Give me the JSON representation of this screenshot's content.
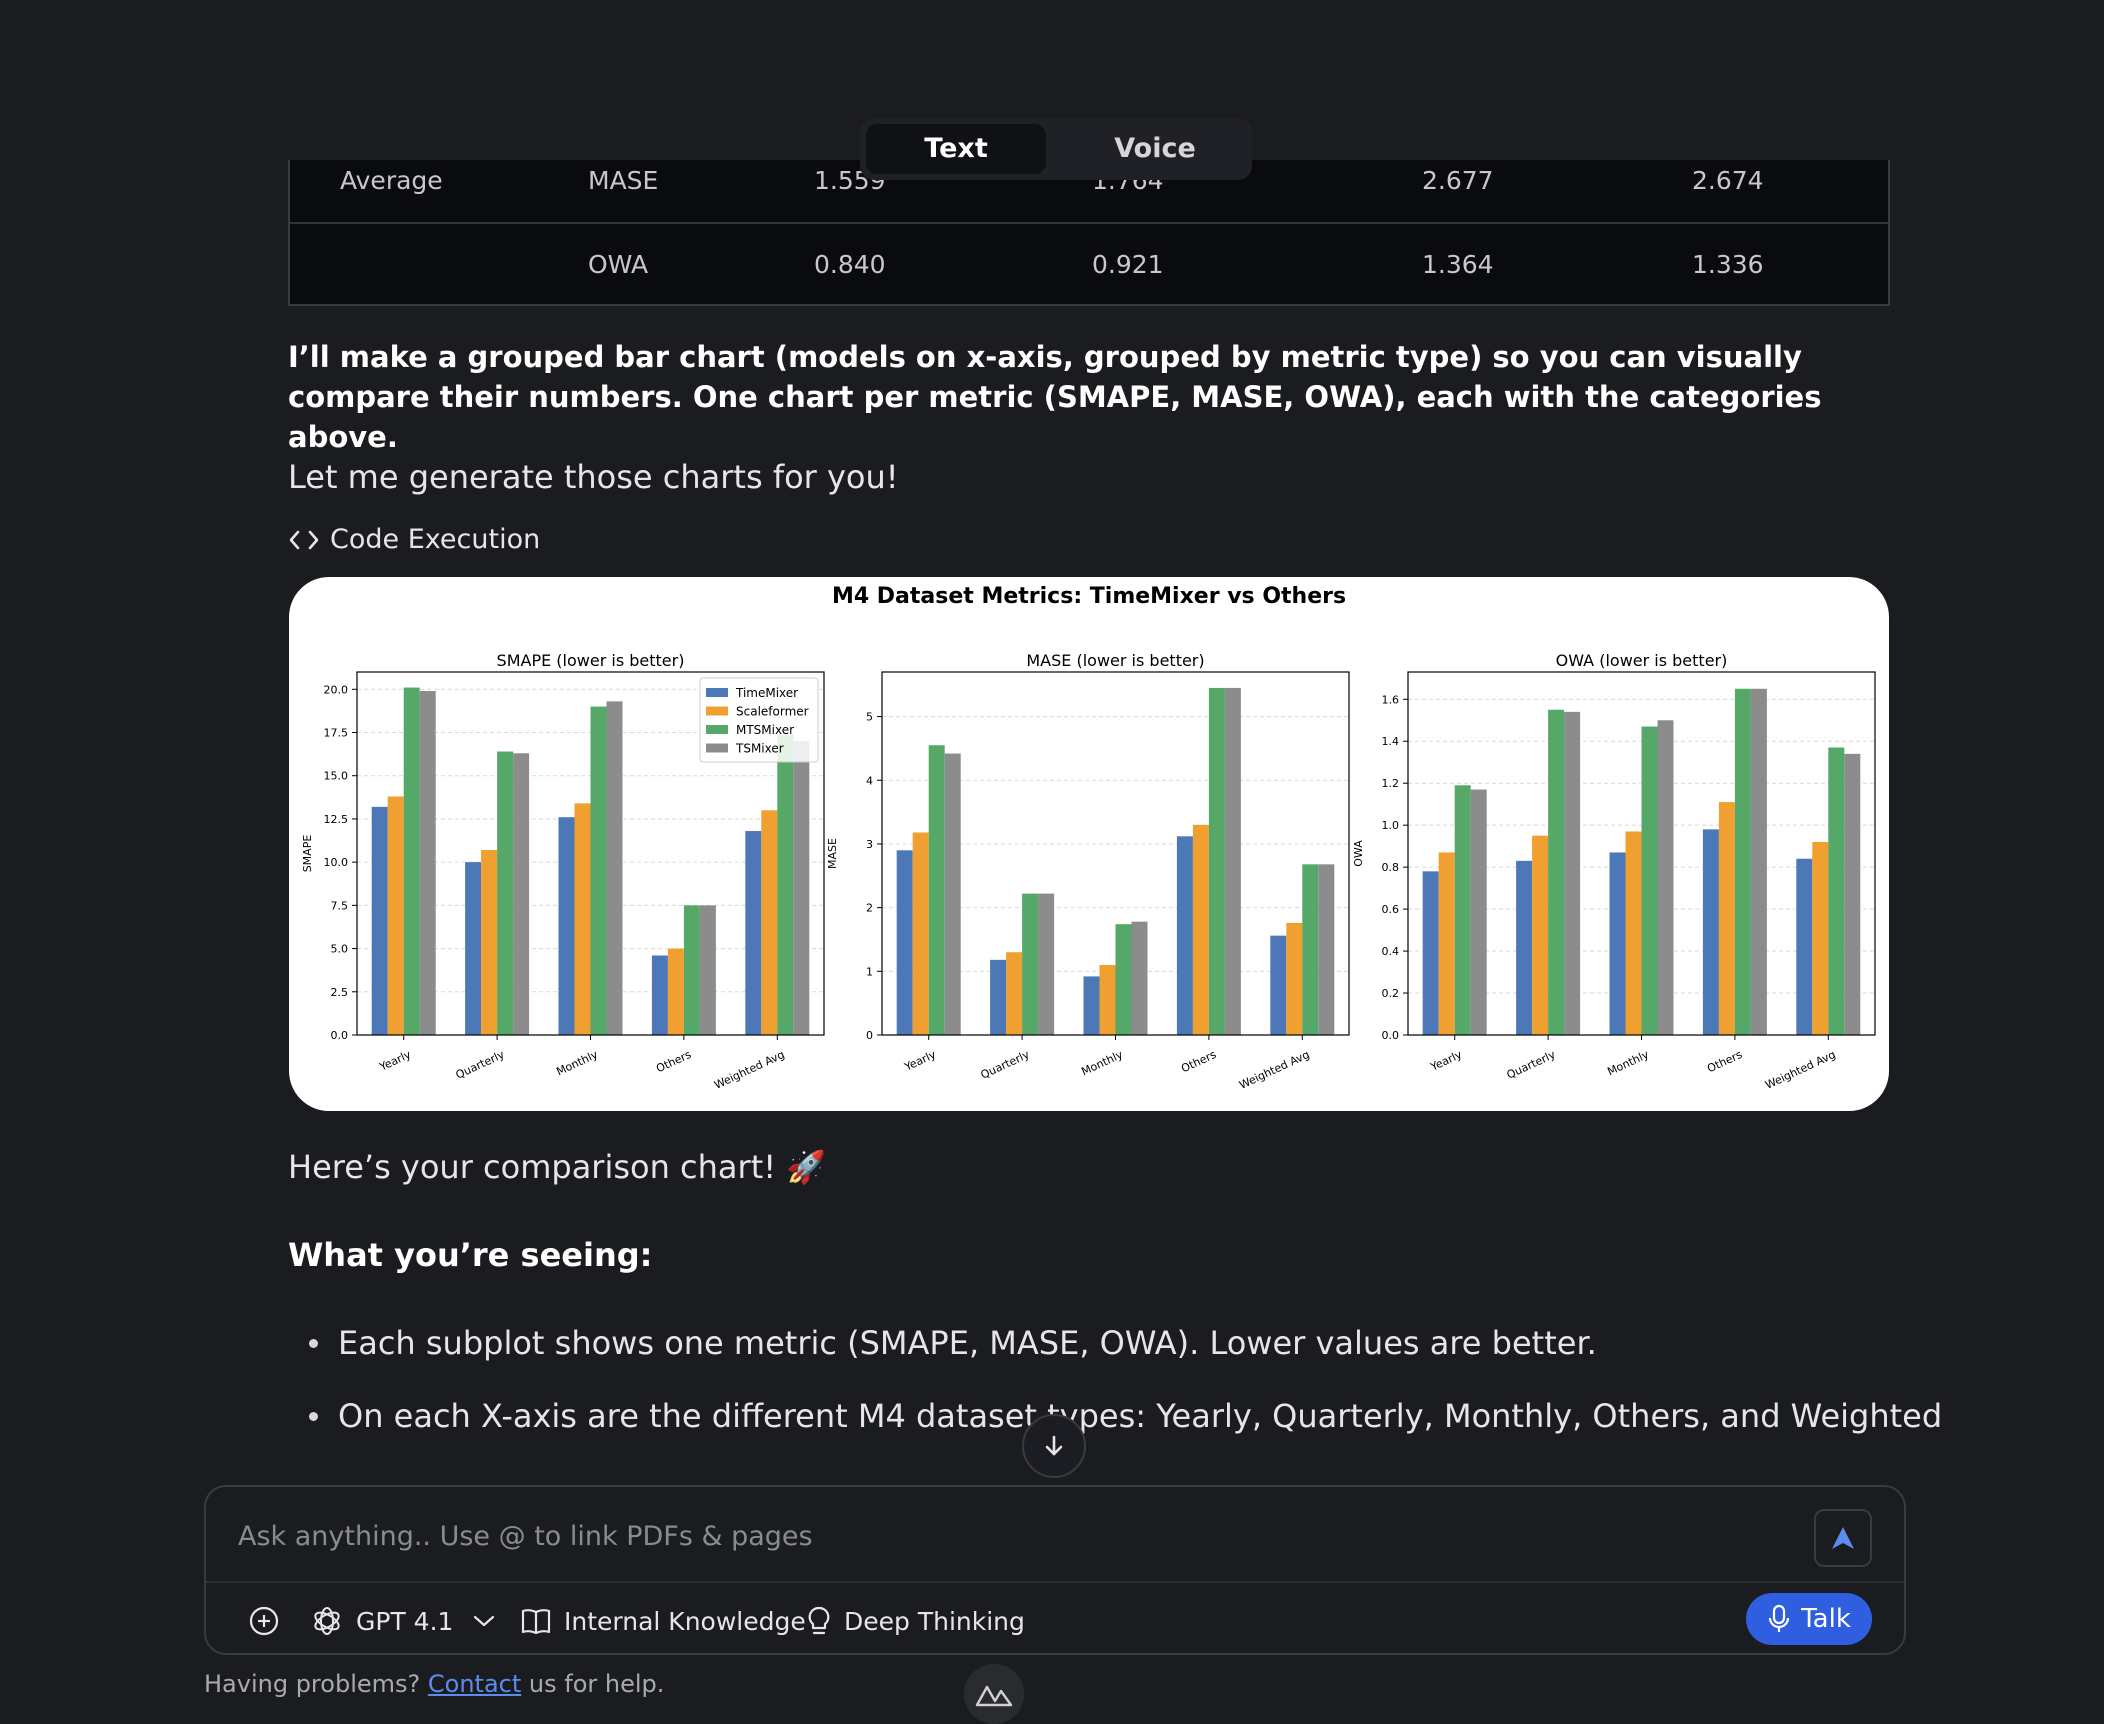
{
  "mode_toggle": {
    "active": "Text",
    "inactive": "Voice"
  },
  "table": {
    "rows": [
      {
        "category": "Average",
        "metric": "MASE",
        "values": [
          "1.559",
          "1.764",
          "2.677",
          "2.674"
        ]
      },
      {
        "category": "",
        "metric": "OWA",
        "values": [
          "0.840",
          "0.921",
          "1.364",
          "1.336"
        ]
      }
    ]
  },
  "message": {
    "intro_bold": "I’ll make a grouped bar chart (models on x-axis, grouped by metric type) so you can visually compare their numbers. One chart per metric (SMAPE, MASE, OWA), each with the categories above.",
    "generate_line": "Let me generate those charts for you!",
    "code_execution": "Code Execution",
    "result_line": "Here’s your comparison chart! 🚀",
    "seeing_heading": "What you’re seeing:",
    "bullets": [
      "Each subplot shows one metric (SMAPE, MASE, OWA). Lower values are better.",
      "On each X-axis are the different M4 dataset types: Yearly, Quarterly, Monthly, Others, and Weighted"
    ]
  },
  "chart_data": {
    "type": "bar",
    "title": "M4 Dataset Metrics: TimeMixer vs Others",
    "categories": [
      "Yearly",
      "Quarterly",
      "Monthly",
      "Others",
      "Weighted Avg"
    ],
    "colors": [
      "#4c78b8",
      "#f0a030",
      "#55a868",
      "#8c8c8c"
    ],
    "legend_position": "top-right",
    "grid": true,
    "subplots": [
      {
        "title": "SMAPE (lower is better)",
        "ylabel": "SMAPE",
        "ylim": [
          0,
          21
        ],
        "yticks": [
          "0.0",
          "2.5",
          "5.0",
          "7.5",
          "10.0",
          "12.5",
          "15.0",
          "17.5",
          "20.0"
        ],
        "legend": true,
        "series": [
          {
            "name": "TimeMixer",
            "values": [
              13.2,
              10.0,
              12.6,
              4.6,
              11.8
            ]
          },
          {
            "name": "Scaleformer",
            "values": [
              13.8,
              10.7,
              13.4,
              5.0,
              13.0
            ]
          },
          {
            "name": "MTSMixer",
            "values": [
              20.1,
              16.4,
              19.0,
              7.5,
              17.4
            ]
          },
          {
            "name": "TSMixer",
            "values": [
              19.9,
              16.3,
              19.3,
              7.5,
              17.0
            ]
          }
        ]
      },
      {
        "title": "MASE (lower is better)",
        "ylabel": "MASE",
        "ylim": [
          0,
          5.7
        ],
        "yticks": [
          "0",
          "1",
          "2",
          "3",
          "4",
          "5"
        ],
        "legend": false,
        "series": [
          {
            "name": "TimeMixer",
            "values": [
              2.9,
              1.18,
              0.92,
              3.12,
              1.56
            ]
          },
          {
            "name": "Scaleformer",
            "values": [
              3.18,
              1.3,
              1.1,
              3.3,
              1.76
            ]
          },
          {
            "name": "MTSMixer",
            "values": [
              4.55,
              2.22,
              1.74,
              5.45,
              2.68
            ]
          },
          {
            "name": "TSMixer",
            "values": [
              4.42,
              2.22,
              1.78,
              5.45,
              2.68
            ]
          }
        ]
      },
      {
        "title": "OWA (lower is better)",
        "ylabel": "OWA",
        "ylim": [
          0,
          1.73
        ],
        "yticks": [
          "0.0",
          "0.2",
          "0.4",
          "0.6",
          "0.8",
          "1.0",
          "1.2",
          "1.4",
          "1.6"
        ],
        "legend": false,
        "series": [
          {
            "name": "TimeMixer",
            "values": [
              0.78,
              0.83,
              0.87,
              0.98,
              0.84
            ]
          },
          {
            "name": "Scaleformer",
            "values": [
              0.87,
              0.95,
              0.97,
              1.11,
              0.92
            ]
          },
          {
            "name": "MTSMixer",
            "values": [
              1.19,
              1.55,
              1.47,
              1.65,
              1.37
            ]
          },
          {
            "name": "TSMixer",
            "values": [
              1.17,
              1.54,
              1.5,
              1.65,
              1.34
            ]
          }
        ]
      }
    ]
  },
  "composer": {
    "placeholder": "Ask anything.. Use @ to link PDFs & pages",
    "model": "GPT 4.1",
    "internal_knowledge": "Internal Knowledge",
    "deep_thinking": "Deep Thinking",
    "talk": "Talk"
  },
  "footer": {
    "prefix": "Having problems?",
    "link": "Contact",
    "suffix": "us for help."
  }
}
